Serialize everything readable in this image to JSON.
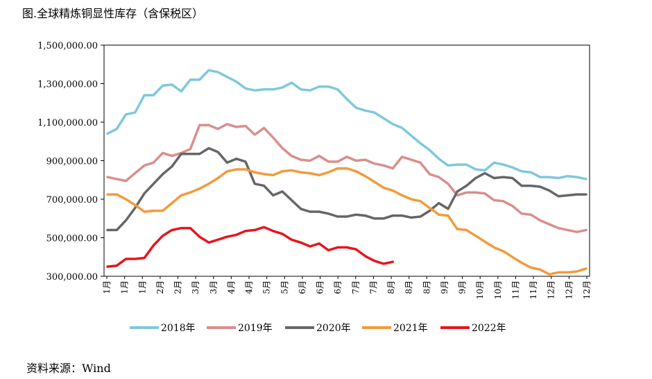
{
  "title": "图.全球精炼铜显性库存（含保税区）",
  "source": "资料来源：Wind",
  "chart_data": {
    "type": "line",
    "ylim": [
      300000,
      1500000
    ],
    "y_ticks": [
      "300,000.00",
      "500,000.00",
      "700,000.00",
      "900,000.00",
      "1,100,000.00",
      "1,300,000.00",
      "1,500,000.00"
    ],
    "y_tick_values": [
      300000,
      500000,
      700000,
      900000,
      1100000,
      1300000,
      1500000
    ],
    "x_labels": [
      "1月",
      "1月",
      "1月",
      "2月",
      "2月",
      "3月",
      "3月",
      "4月",
      "4月",
      "5月",
      "5月",
      "6月",
      "6月",
      "6月",
      "7月",
      "7月",
      "8月",
      "8月",
      "8月",
      "9月",
      "9月",
      "10月",
      "10月",
      "11月",
      "11月",
      "12月",
      "12月",
      "12月"
    ],
    "grid": false,
    "legend_position": "bottom",
    "series": [
      {
        "name": "2018年",
        "color": "#7ec8dc",
        "values": [
          1040000,
          1065000,
          1140000,
          1150000,
          1240000,
          1240000,
          1290000,
          1295000,
          1260000,
          1320000,
          1320000,
          1370000,
          1360000,
          1335000,
          1310000,
          1275000,
          1265000,
          1270000,
          1270000,
          1280000,
          1305000,
          1270000,
          1265000,
          1285000,
          1285000,
          1270000,
          1220000,
          1175000,
          1160000,
          1150000,
          1120000,
          1090000,
          1070000,
          1030000,
          990000,
          955000,
          910000,
          875000,
          880000,
          880000,
          855000,
          850000,
          890000,
          880000,
          865000,
          845000,
          840000,
          815000,
          815000,
          810000,
          820000,
          815000,
          805000
        ]
      },
      {
        "name": "2019年",
        "color": "#d98e8c",
        "values": [
          815000,
          805000,
          795000,
          835000,
          875000,
          890000,
          940000,
          925000,
          940000,
          960000,
          1085000,
          1085000,
          1065000,
          1090000,
          1075000,
          1080000,
          1035000,
          1070000,
          1020000,
          965000,
          925000,
          905000,
          900000,
          925000,
          895000,
          895000,
          920000,
          900000,
          905000,
          885000,
          875000,
          860000,
          920000,
          905000,
          890000,
          830000,
          815000,
          780000,
          720000,
          735000,
          735000,
          730000,
          695000,
          690000,
          665000,
          625000,
          620000,
          590000,
          570000,
          550000,
          540000,
          530000,
          540000
        ]
      },
      {
        "name": "2020年",
        "color": "#666666",
        "values": [
          540000,
          540000,
          590000,
          655000,
          730000,
          780000,
          830000,
          870000,
          935000,
          935000,
          935000,
          965000,
          945000,
          890000,
          910000,
          895000,
          780000,
          770000,
          720000,
          740000,
          695000,
          650000,
          635000,
          635000,
          625000,
          610000,
          610000,
          620000,
          615000,
          600000,
          600000,
          615000,
          615000,
          605000,
          610000,
          640000,
          680000,
          650000,
          740000,
          770000,
          810000,
          835000,
          810000,
          815000,
          810000,
          770000,
          770000,
          765000,
          745000,
          715000,
          720000,
          725000,
          725000
        ]
      },
      {
        "name": "2021年",
        "color": "#f39a3a",
        "values": [
          725000,
          725000,
          700000,
          670000,
          635000,
          640000,
          640000,
          680000,
          720000,
          735000,
          755000,
          780000,
          810000,
          845000,
          855000,
          855000,
          840000,
          830000,
          825000,
          845000,
          850000,
          840000,
          835000,
          825000,
          840000,
          860000,
          860000,
          845000,
          820000,
          790000,
          760000,
          745000,
          720000,
          700000,
          690000,
          655000,
          620000,
          615000,
          545000,
          540000,
          510000,
          480000,
          450000,
          430000,
          400000,
          370000,
          345000,
          335000,
          310000,
          320000,
          320000,
          325000,
          340000
        ]
      },
      {
        "name": "2022年",
        "color": "#e8141c",
        "values": [
          350000,
          355000,
          390000,
          390000,
          395000,
          460000,
          510000,
          540000,
          550000,
          550000,
          505000,
          475000,
          490000,
          505000,
          515000,
          535000,
          540000,
          555000,
          535000,
          520000,
          490000,
          475000,
          455000,
          470000,
          435000,
          450000,
          450000,
          440000,
          405000,
          380000,
          365000,
          375000
        ]
      }
    ]
  }
}
